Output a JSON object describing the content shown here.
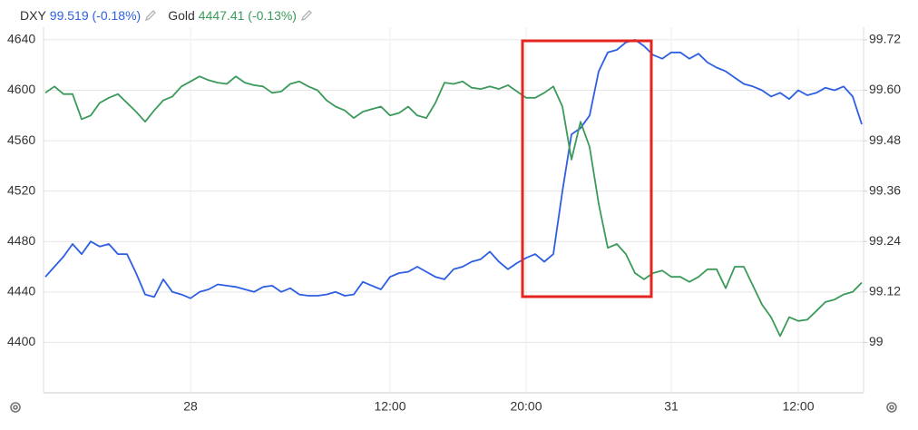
{
  "chart_data": {
    "type": "line",
    "series": [
      {
        "name": "DXY",
        "quote": "99.519 (-0.18%)",
        "color": "#2e5fe3",
        "axis": "y2",
        "values": [
          99.156,
          99.18,
          99.204,
          99.234,
          99.21,
          99.24,
          99.228,
          99.234,
          99.21,
          99.21,
          99.165,
          99.114,
          99.108,
          99.15,
          99.12,
          99.114,
          99.105,
          99.12,
          99.126,
          99.138,
          99.135,
          99.132,
          99.126,
          99.12,
          99.132,
          99.135,
          99.12,
          99.129,
          99.114,
          99.111,
          99.111,
          99.114,
          99.12,
          99.111,
          99.114,
          99.144,
          99.135,
          99.126,
          99.156,
          99.165,
          99.168,
          99.18,
          99.168,
          99.156,
          99.15,
          99.174,
          99.18,
          99.192,
          99.198,
          99.216,
          99.192,
          99.174,
          99.189,
          99.201,
          99.21,
          99.192,
          99.21,
          99.36,
          99.495,
          99.51,
          99.54,
          99.645,
          99.69,
          99.696,
          99.714,
          99.72,
          99.705,
          99.684,
          99.675,
          99.69,
          99.69,
          99.675,
          99.687,
          99.666,
          99.654,
          99.645,
          99.63,
          99.615,
          99.609,
          99.6,
          99.585,
          99.594,
          99.579,
          99.6,
          99.588,
          99.594,
          99.606,
          99.6,
          99.609,
          99.585,
          99.519
        ]
      },
      {
        "name": "Gold",
        "quote": "4447.41 (-0.13%)",
        "color": "#3b9a5a",
        "axis": "y",
        "values": [
          4598,
          4603,
          4597,
          4597,
          4577,
          4580,
          4590,
          4594,
          4597,
          4590,
          4583,
          4575,
          4584,
          4592,
          4595,
          4603,
          4607,
          4611,
          4608,
          4606,
          4605,
          4611,
          4606,
          4604,
          4603,
          4598,
          4599,
          4605,
          4607,
          4603,
          4600,
          4592,
          4587,
          4584,
          4578,
          4583,
          4585,
          4587,
          4580,
          4582,
          4587,
          4580,
          4578,
          4590,
          4606,
          4605,
          4607,
          4602,
          4601,
          4603,
          4601,
          4604,
          4599,
          4594,
          4594,
          4598,
          4603,
          4587,
          4545,
          4575,
          4555,
          4510,
          4475,
          4478,
          4470,
          4455,
          4450,
          4455,
          4457,
          4452,
          4452,
          4448,
          4452,
          4458,
          4458,
          4443,
          4460,
          4460,
          4445,
          4430,
          4420,
          4405,
          4420,
          4417,
          4418,
          4425,
          4432,
          4434,
          4438,
          4440,
          4447.41
        ]
      }
    ],
    "categories": [
      null,
      null,
      null,
      null,
      null,
      null,
      null,
      null,
      null,
      null,
      null,
      null,
      null,
      null,
      null,
      null,
      "28",
      null,
      null,
      null,
      null,
      null,
      null,
      null,
      null,
      null,
      null,
      null,
      null,
      null,
      null,
      null,
      null,
      null,
      null,
      null,
      null,
      null,
      "12:00",
      null,
      null,
      null,
      null,
      null,
      null,
      null,
      null,
      null,
      null,
      null,
      null,
      null,
      null,
      "20:00",
      null,
      null,
      null,
      null,
      null,
      null,
      null,
      null,
      null,
      null,
      null,
      null,
      null,
      null,
      null,
      "31",
      null,
      null,
      null,
      null,
      null,
      null,
      null,
      null,
      null,
      null,
      null,
      null,
      null,
      "12:00",
      null,
      null,
      null,
      null,
      null,
      null,
      null
    ],
    "ylim": [
      4360,
      4650
    ],
    "yticks": [
      4400,
      4440,
      4480,
      4520,
      4560,
      4600,
      4640
    ],
    "y2lim": [
      98.88,
      99.75
    ],
    "y2ticks": [
      99,
      99.12,
      99.24,
      99.36,
      99.48,
      {
        "value": 99.6,
        "label": "99.60"
      },
      99.72
    ],
    "grid": true
  }
}
